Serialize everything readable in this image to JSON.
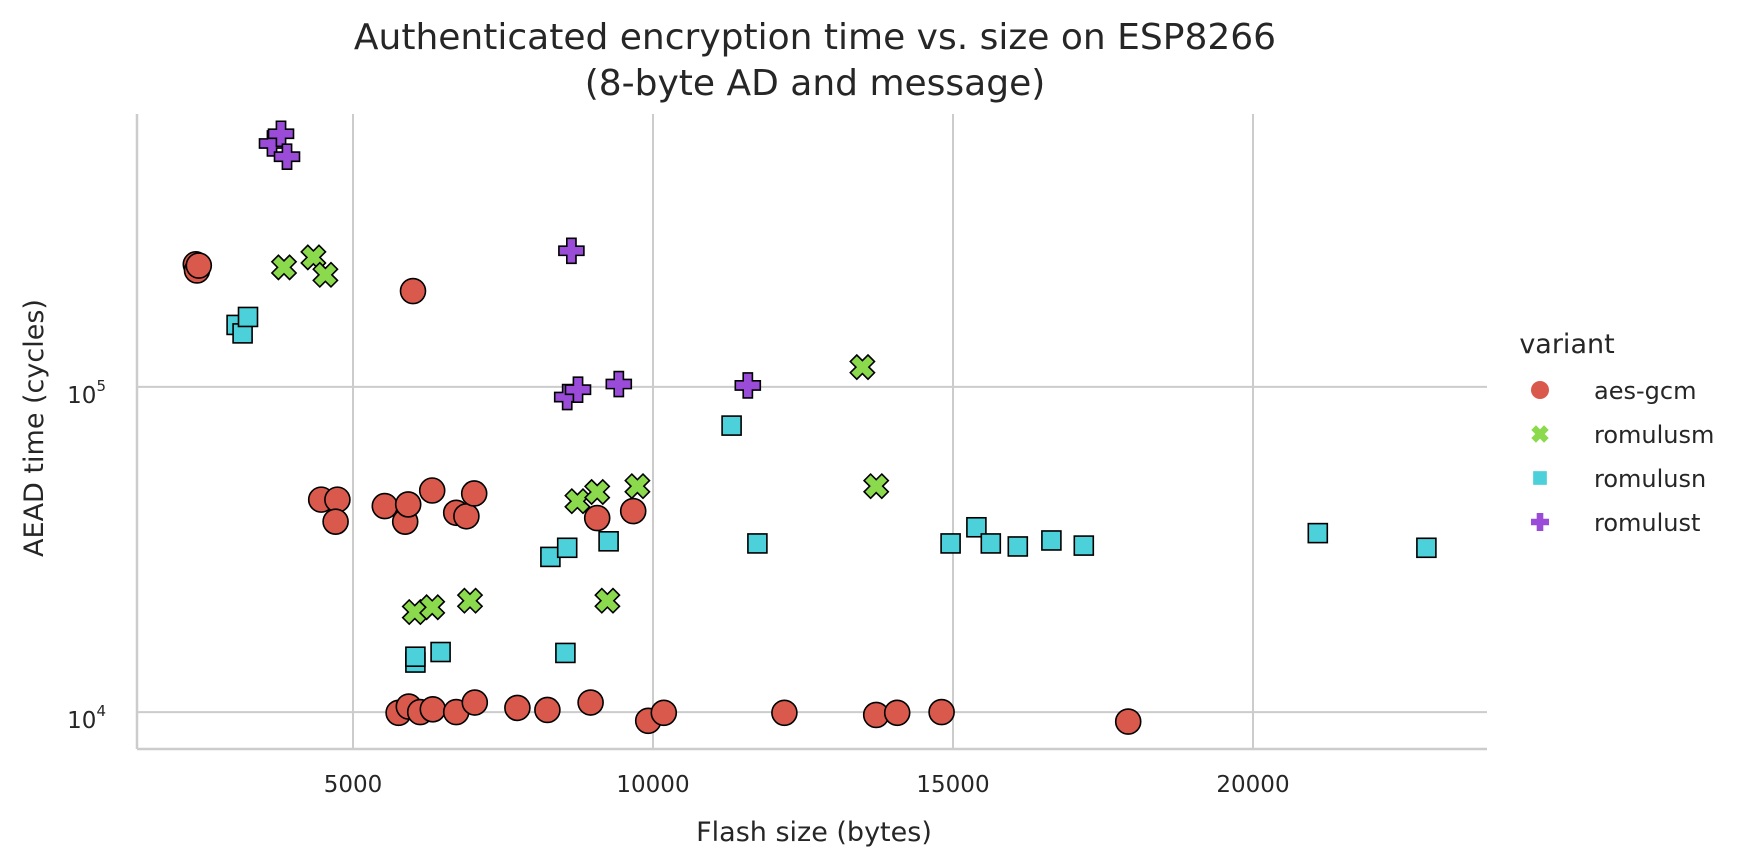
{
  "chart_data": {
    "type": "scatter",
    "title": "Authenticated encryption time vs. size on ESP8266",
    "subtitle": "(8-byte AD and message)",
    "xlabel": "Flash size (bytes)",
    "ylabel": "AEAD time (cycles)",
    "x_scale": "linear",
    "y_scale": "log",
    "xlim": [
      1400,
      23900
    ],
    "ylim": [
      7700,
      690000
    ],
    "x_ticks": [
      5000,
      10000,
      15000,
      20000
    ],
    "x_tick_labels": [
      "5000",
      "10000",
      "15000",
      "20000"
    ],
    "y_ticks": [
      10000,
      100000
    ],
    "y_tick_labels": [
      {
        "base": "10",
        "exp": "4"
      },
      {
        "base": "10",
        "exp": "5"
      }
    ],
    "grid": true,
    "legend": {
      "title": "variant",
      "placement": "right"
    },
    "series": [
      {
        "name": "aes-gcm",
        "marker": "circle",
        "color": "#d9594c",
        "points": [
          [
            2380,
            238000
          ],
          [
            2400,
            228000
          ],
          [
            2430,
            236000
          ],
          [
            6000,
            197000
          ],
          [
            4470,
            45000
          ],
          [
            4740,
            45000
          ],
          [
            4710,
            38500
          ],
          [
            5530,
            43000
          ],
          [
            5870,
            38500
          ],
          [
            5920,
            43500
          ],
          [
            6320,
            48000
          ],
          [
            6720,
            41000
          ],
          [
            6890,
            40000
          ],
          [
            7020,
            47000
          ],
          [
            9070,
            39500
          ],
          [
            9670,
            41500
          ],
          [
            5760,
            9950
          ],
          [
            5930,
            10400
          ],
          [
            6120,
            10000
          ],
          [
            6330,
            10200
          ],
          [
            6720,
            10000
          ],
          [
            7030,
            10700
          ],
          [
            7740,
            10300
          ],
          [
            8240,
            10150
          ],
          [
            8960,
            10700
          ],
          [
            9920,
            9400
          ],
          [
            10180,
            9950
          ],
          [
            12190,
            9950
          ],
          [
            13720,
            9800
          ],
          [
            14070,
            9950
          ],
          [
            14810,
            10000
          ],
          [
            17920,
            9350
          ]
        ]
      },
      {
        "name": "romulusm",
        "marker": "x",
        "color": "#8bd94c",
        "points": [
          [
            3850,
            233000
          ],
          [
            4340,
            250000
          ],
          [
            4540,
            221000
          ],
          [
            13490,
            115000
          ],
          [
            8740,
            44500
          ],
          [
            9070,
            47500
          ],
          [
            9740,
            49500
          ],
          [
            13720,
            49500
          ],
          [
            6030,
            20300
          ],
          [
            6320,
            21000
          ],
          [
            6950,
            22000
          ],
          [
            9240,
            22000
          ]
        ]
      },
      {
        "name": "romulusn",
        "marker": "square",
        "color": "#4cd0d9",
        "points": [
          [
            3060,
            155000
          ],
          [
            3160,
            146000
          ],
          [
            3250,
            164000
          ],
          [
            11310,
            76000
          ],
          [
            8290,
            30000
          ],
          [
            8570,
            32000
          ],
          [
            9260,
            33500
          ],
          [
            11740,
            33000
          ],
          [
            14960,
            33000
          ],
          [
            15390,
            37000
          ],
          [
            15630,
            33000
          ],
          [
            16080,
            32300
          ],
          [
            16640,
            33700
          ],
          [
            17180,
            32500
          ],
          [
            21080,
            35500
          ],
          [
            22890,
            32000
          ],
          [
            6040,
            14200
          ],
          [
            6040,
            14800
          ],
          [
            6460,
            15300
          ],
          [
            8540,
            15200
          ]
        ]
      },
      {
        "name": "romulust",
        "marker": "plus",
        "color": "#9a4cd9",
        "points": [
          [
            3650,
            560000
          ],
          [
            3800,
            600000
          ],
          [
            3900,
            510000
          ],
          [
            8640,
            262000
          ],
          [
            8570,
            93000
          ],
          [
            8750,
            98000
          ],
          [
            9430,
            102000
          ],
          [
            11580,
            101000
          ]
        ]
      }
    ]
  }
}
